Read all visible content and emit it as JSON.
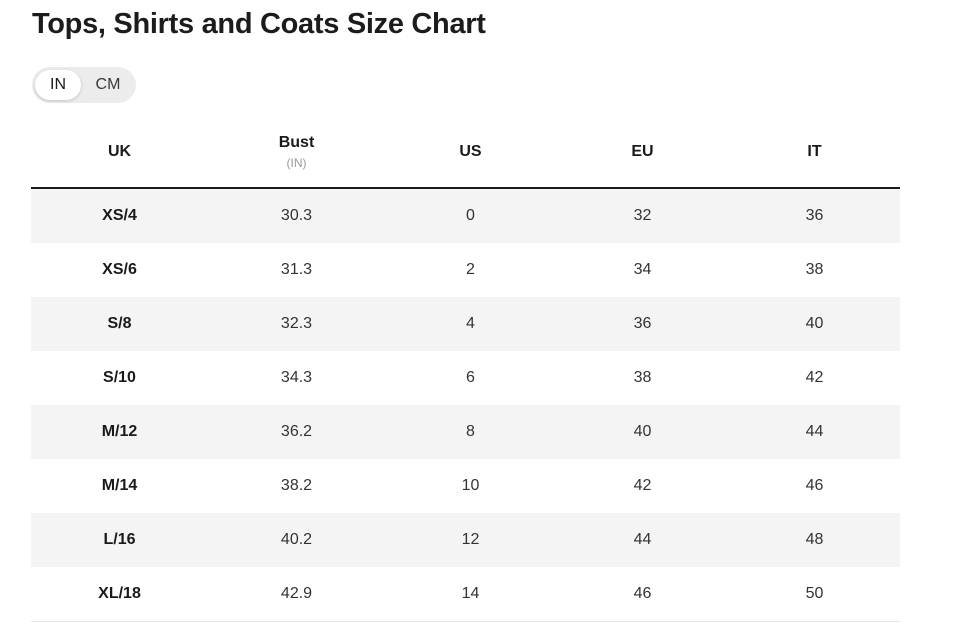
{
  "page": {
    "title": "Tops, Shirts and Coats Size Chart"
  },
  "unit_toggle": {
    "options": [
      "IN",
      "CM"
    ],
    "selected": "IN"
  },
  "table": {
    "headers": {
      "uk": "UK",
      "bust": "Bust",
      "bust_unit": "(IN)",
      "us": "US",
      "eu": "EU",
      "it": "IT"
    },
    "rows": [
      {
        "uk": "XS/4",
        "bust": "30.3",
        "us": "0",
        "eu": "32",
        "it": "36"
      },
      {
        "uk": "XS/6",
        "bust": "31.3",
        "us": "2",
        "eu": "34",
        "it": "38"
      },
      {
        "uk": "S/8",
        "bust": "32.3",
        "us": "4",
        "eu": "36",
        "it": "40"
      },
      {
        "uk": "S/10",
        "bust": "34.3",
        "us": "6",
        "eu": "38",
        "it": "42"
      },
      {
        "uk": "M/12",
        "bust": "36.2",
        "us": "8",
        "eu": "40",
        "it": "44"
      },
      {
        "uk": "M/14",
        "bust": "38.2",
        "us": "10",
        "eu": "42",
        "it": "46"
      },
      {
        "uk": "L/16",
        "bust": "40.2",
        "us": "12",
        "eu": "44",
        "it": "48"
      },
      {
        "uk": "XL/18",
        "bust": "42.9",
        "us": "14",
        "eu": "46",
        "it": "50"
      }
    ]
  }
}
